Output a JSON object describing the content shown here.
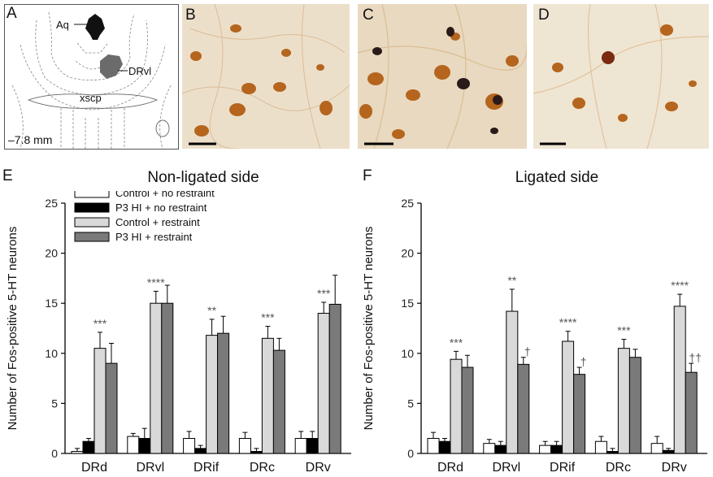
{
  "panel_labels": {
    "a": "A",
    "b": "B",
    "c": "C",
    "d": "D",
    "e": "E",
    "f": "F"
  },
  "atlas": {
    "aq_label": "Aq",
    "drvl_label": "DRvl",
    "xscp_label": "xscp",
    "depth_label": "–7.8 mm",
    "aq_color": "#111111",
    "drvl_color": "#6b6b6b"
  },
  "colors": {
    "control_no_restraint": "#ffffff",
    "hi_no_restraint": "#000000",
    "control_restraint": "#d9d9d9",
    "hi_restraint": "#7a7a7a",
    "photo_bg": "#e9dcc6",
    "stain": "#b5651d"
  },
  "chart_data": [
    {
      "type": "bar",
      "title": "Non-ligated side",
      "ylabel": "Number of Fos-positive 5-HT neurons",
      "xlabel": "",
      "ylim": [
        0,
        25
      ],
      "yticks": [
        "0",
        "5",
        "10",
        "15",
        "20",
        "25"
      ],
      "categories": [
        "DRd",
        "DRvl",
        "DRif",
        "DRc",
        "DRv"
      ],
      "legend_position": "top-left",
      "series": [
        {
          "name": "Control + no restraint",
          "values": [
            0.2,
            1.7,
            1.5,
            1.5,
            1.5
          ],
          "errors": [
            0.3,
            0.3,
            0.7,
            0.6,
            0.7
          ]
        },
        {
          "name": "P3 HI + no restraint",
          "values": [
            1.2,
            1.5,
            0.5,
            0.2,
            1.5
          ],
          "errors": [
            0.3,
            1.0,
            0.3,
            0.3,
            0.7
          ]
        },
        {
          "name": "Control + restraint",
          "values": [
            10.5,
            15.0,
            11.8,
            11.5,
            14.0
          ],
          "errors": [
            1.6,
            1.2,
            1.6,
            1.2,
            1.1
          ]
        },
        {
          "name": "P3 HI + restraint",
          "values": [
            9.0,
            15.0,
            12.0,
            10.3,
            14.9
          ],
          "errors": [
            2.0,
            1.8,
            1.7,
            1.2,
            2.9
          ]
        }
      ],
      "annotations": [
        {
          "category": "DRd",
          "series": 2,
          "text": "***"
        },
        {
          "category": "DRvl",
          "series": 2,
          "text": "****"
        },
        {
          "category": "DRif",
          "series": 2,
          "text": "**"
        },
        {
          "category": "DRc",
          "series": 2,
          "text": "***"
        },
        {
          "category": "DRv",
          "series": 2,
          "text": "***"
        }
      ]
    },
    {
      "type": "bar",
      "title": "Ligated side",
      "ylabel": "Number of Fos-positive 5-HT neurons",
      "xlabel": "",
      "ylim": [
        0,
        25
      ],
      "yticks": [
        "0",
        "5",
        "10",
        "15",
        "20",
        "25"
      ],
      "categories": [
        "DRd",
        "DRvl",
        "DRif",
        "DRc",
        "DRv"
      ],
      "series": [
        {
          "name": "Control + no restraint",
          "values": [
            1.5,
            1.0,
            0.8,
            1.2,
            1.0
          ],
          "errors": [
            0.6,
            0.4,
            0.4,
            0.5,
            0.7
          ]
        },
        {
          "name": "P3 HI + no restraint",
          "values": [
            1.2,
            0.8,
            0.8,
            0.2,
            0.3
          ],
          "errors": [
            0.3,
            0.4,
            0.4,
            0.3,
            0.2
          ]
        },
        {
          "name": "Control + restraint",
          "values": [
            9.4,
            14.2,
            11.2,
            10.5,
            14.7
          ],
          "errors": [
            0.8,
            2.2,
            1.0,
            0.9,
            1.2
          ]
        },
        {
          "name": "P3 HI + restraint",
          "values": [
            8.6,
            8.9,
            7.9,
            9.6,
            8.1
          ],
          "errors": [
            1.2,
            0.7,
            0.7,
            0.8,
            0.9
          ]
        }
      ],
      "annotations": [
        {
          "category": "DRd",
          "series": 2,
          "text": "***"
        },
        {
          "category": "DRvl",
          "series": 2,
          "text": "**"
        },
        {
          "category": "DRvl",
          "series": 3,
          "text": "†"
        },
        {
          "category": "DRif",
          "series": 2,
          "text": "****"
        },
        {
          "category": "DRif",
          "series": 3,
          "text": "†"
        },
        {
          "category": "DRc",
          "series": 2,
          "text": "***"
        },
        {
          "category": "DRv",
          "series": 2,
          "text": "****"
        },
        {
          "category": "DRv",
          "series": 3,
          "text": "††"
        }
      ]
    }
  ]
}
